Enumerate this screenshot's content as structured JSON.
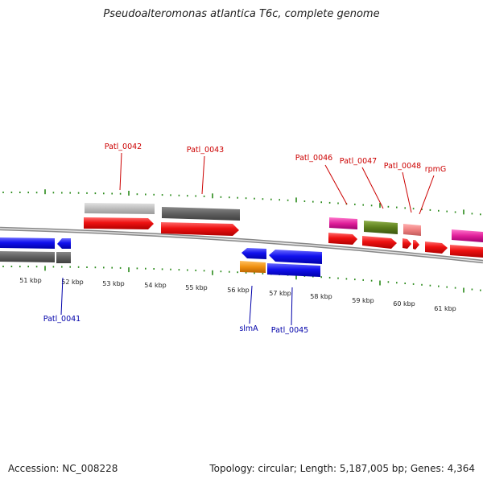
{
  "title": "Pseudoalteromonas atlantica T6c, complete genome",
  "footer": {
    "accession": "Accession: NC_008228",
    "summary": "Topology: circular; Length: 5,187,005 bp; Genes: 4,364"
  },
  "colors": {
    "forward_gene_label": "#cc0000",
    "reverse_gene_label": "#0000aa",
    "tick": "#2a8a1a",
    "backbone": "#888888",
    "forward_cds": "#ee1111",
    "reverse_cds": "#1111dd"
  },
  "scale": {
    "unit": "kbp",
    "labels": [
      "51 kbp",
      "52 kbp",
      "53 kbp",
      "54 kbp",
      "55 kbp",
      "56 kbp",
      "57 kbp",
      "58 kbp",
      "59 kbp",
      "60 kbp",
      "61 kbp"
    ]
  },
  "genes": [
    {
      "name": "Patl_0041",
      "strand": "-"
    },
    {
      "name": "Patl_0042",
      "strand": "+"
    },
    {
      "name": "Patl_0043",
      "strand": "+"
    },
    {
      "name": "slmA",
      "strand": "-"
    },
    {
      "name": "Patl_0045",
      "strand": "-"
    },
    {
      "name": "Patl_0046",
      "strand": "+"
    },
    {
      "name": "Patl_0047",
      "strand": "+"
    },
    {
      "name": "Patl_0048",
      "strand": "+"
    },
    {
      "name": "rpmG",
      "strand": "+"
    }
  ]
}
